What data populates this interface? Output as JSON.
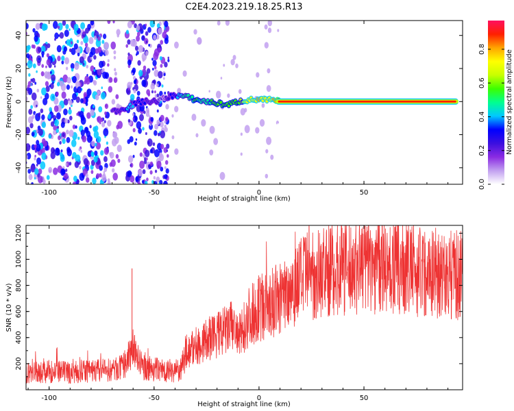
{
  "figure_title": "C2E4.2023.219.18.25.R13",
  "chart_data": [
    {
      "type": "heatmap",
      "title": "",
      "xlabel": "Height of straight line (km)",
      "ylabel": "Frequency (Hz)",
      "xlim": [
        -111,
        97
      ],
      "ylim": [
        -50,
        49
      ],
      "xticks": [
        -100,
        -50,
        0,
        50
      ],
      "yticks": [
        -40,
        -20,
        0,
        20,
        40
      ],
      "colorbar": {
        "label": "Normalized spectral amplitude",
        "range": [
          0,
          0.97
        ],
        "ticks": [
          0.0,
          0.2,
          0.4,
          0.6,
          0.8
        ],
        "tick_labels": [
          "0.0",
          "0.2",
          "0.4",
          "0.6",
          "0.8"
        ],
        "colormap": [
          "#ffffff",
          "#c2a0f0",
          "#8a2be2",
          "#3b0fe0",
          "#0000ff",
          "#00c8ff",
          "#00ff90",
          "#3cff00",
          "#c8ff00",
          "#ffff00",
          "#ffa500",
          "#ff2000",
          "#ff1060"
        ]
      },
      "ridge": [
        {
          "x": -70,
          "y": -6,
          "amp": 0.22
        },
        {
          "x": -66,
          "y": -5,
          "amp": 0.28
        },
        {
          "x": -62,
          "y": -3,
          "amp": 0.4
        },
        {
          "x": -58,
          "y": -1,
          "amp": 0.35
        },
        {
          "x": -55,
          "y": 0,
          "amp": 0.3
        },
        {
          "x": -50,
          "y": 0,
          "amp": 0.25
        },
        {
          "x": -45,
          "y": 2,
          "amp": 0.2
        },
        {
          "x": -40,
          "y": 4,
          "amp": 0.35
        },
        {
          "x": -35,
          "y": 3,
          "amp": 0.5
        },
        {
          "x": -30,
          "y": 1,
          "amp": 0.55
        },
        {
          "x": -25,
          "y": 0,
          "amp": 0.5
        },
        {
          "x": -20,
          "y": -1,
          "amp": 0.6
        },
        {
          "x": -15,
          "y": -2,
          "amp": 0.55
        },
        {
          "x": -10,
          "y": 0,
          "amp": 0.6
        },
        {
          "x": -5,
          "y": 1,
          "amp": 0.75
        },
        {
          "x": 0,
          "y": 1,
          "amp": 0.8
        },
        {
          "x": 5,
          "y": 1,
          "amp": 0.75
        },
        {
          "x": 10,
          "y": 0,
          "amp": 0.9
        },
        {
          "x": 50,
          "y": 0,
          "amp": 0.95
        },
        {
          "x": 95,
          "y": 0,
          "amp": 0.95
        }
      ]
    },
    {
      "type": "line",
      "title": "",
      "xlabel": "Height of straight line (km)",
      "ylabel": "SNR (10 * v/v)",
      "xlim": [
        -111,
        97
      ],
      "ylim": [
        0,
        1260
      ],
      "xticks": [
        -100,
        -50,
        0,
        50
      ],
      "yticks": [
        200,
        400,
        600,
        800,
        1000,
        1200
      ],
      "color": "#ee3333",
      "series": [
        {
          "x": [
            -110,
            -100,
            -90,
            -80,
            -70,
            -65,
            -62,
            -60,
            -58,
            -55,
            -50,
            -45,
            -40,
            -37,
            -35,
            -30,
            -25,
            -20,
            -15,
            -12,
            -10,
            -8,
            -5,
            0,
            5,
            10,
            15,
            20,
            25,
            30,
            35,
            40,
            45,
            50,
            55,
            60,
            65,
            70,
            75,
            80,
            85,
            90,
            95
          ],
          "values": [
            130,
            140,
            130,
            145,
            150,
            170,
            250,
            330,
            240,
            170,
            160,
            150,
            145,
            150,
            290,
            330,
            380,
            420,
            460,
            500,
            380,
            450,
            560,
            620,
            650,
            700,
            780,
            850,
            880,
            900,
            920,
            930,
            940,
            950,
            950,
            940,
            930,
            930,
            920,
            900,
            900,
            880,
            880
          ]
        }
      ]
    }
  ]
}
